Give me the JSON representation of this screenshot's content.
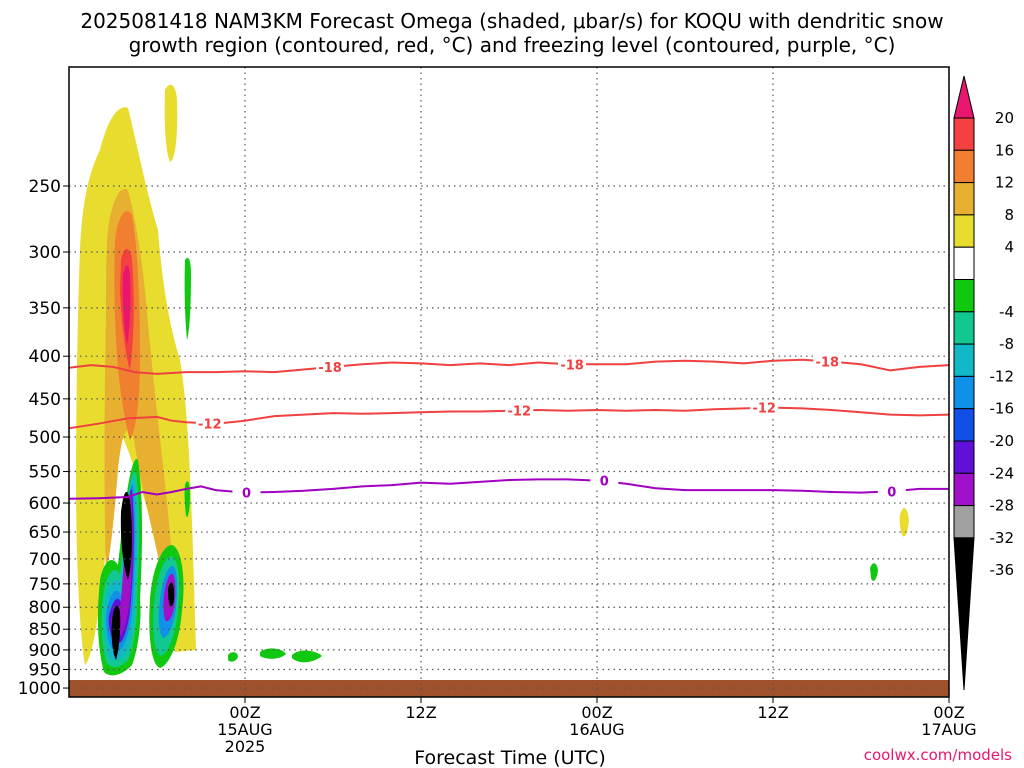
{
  "title_line1": "2025081418 NAM3KM Forecast Omega (shaded, μbar/s) for KOQU with dendritic snow",
  "title_line2": "growth region (contoured, red, °C) and freezing level (contoured, purple, °C)",
  "xlabel": "Forecast Time (UTC)",
  "watermark": "coolwx.com/models",
  "chart_data": {
    "type": "heatmap",
    "title": "2025081418 NAM3KM Forecast Omega (shaded, μbar/s) for KOQU with dendritic snow growth region (contoured, red, °C) and freezing level (contoured, purple, °C)",
    "xlabel": "Forecast Time (UTC)",
    "ylabel": "",
    "x_range_hours": [
      -6,
      54
    ],
    "y_range_hPa": [
      1025,
      180
    ],
    "y_scale": "log-pressure",
    "grid": true,
    "y_ticks": [
      250,
      300,
      350,
      400,
      450,
      500,
      550,
      600,
      650,
      700,
      750,
      800,
      850,
      900,
      950,
      1000
    ],
    "x_ticks": [
      {
        "hour": 6,
        "line1": "00Z",
        "line2": "15AUG",
        "line3": "2025"
      },
      {
        "hour": 18,
        "line1": "12Z",
        "line2": "",
        "line3": ""
      },
      {
        "hour": 30,
        "line1": "00Z",
        "line2": "16AUG",
        "line3": ""
      },
      {
        "hour": 42,
        "line1": "12Z",
        "line2": "",
        "line3": ""
      },
      {
        "hour": 54,
        "line1": "00Z",
        "line2": "17AUG",
        "line3": ""
      }
    ],
    "colorbar": {
      "labels": [
        "20",
        "16",
        "12",
        "8",
        "4",
        "-4",
        "-8",
        "-12",
        "-16",
        "-20",
        "-24",
        "-28",
        "-32",
        "-36"
      ],
      "colors": [
        "#e8166e",
        "#f44040",
        "#f08030",
        "#e8b030",
        "#e8dc2e",
        "#ffffff",
        "#10c810",
        "#10c890",
        "#10b8c8",
        "#1090e8",
        "#1050e8",
        "#6010d8",
        "#a010c8",
        "#a0a0a0",
        "#000000"
      ]
    },
    "contours": [
      {
        "name": "-18",
        "color": "#f04040",
        "points": [
          [
            -6,
            413
          ],
          [
            -4.5,
            410
          ],
          [
            -3,
            412
          ],
          [
            -1.5,
            418
          ],
          [
            0,
            420
          ],
          [
            2,
            418
          ],
          [
            4,
            418
          ],
          [
            6,
            417
          ],
          [
            8,
            418
          ],
          [
            10,
            415
          ],
          [
            12,
            412
          ],
          [
            14,
            409
          ],
          [
            16,
            407
          ],
          [
            18,
            408
          ],
          [
            20,
            410
          ],
          [
            22,
            408
          ],
          [
            24,
            410
          ],
          [
            26,
            407
          ],
          [
            28,
            409
          ],
          [
            30,
            409
          ],
          [
            32,
            409
          ],
          [
            34,
            406
          ],
          [
            36,
            405
          ],
          [
            38,
            406
          ],
          [
            40,
            408
          ],
          [
            42,
            405
          ],
          [
            44,
            404
          ],
          [
            46,
            406
          ],
          [
            48,
            409
          ],
          [
            50,
            416
          ],
          [
            52,
            412
          ],
          [
            54,
            410
          ],
          [
            56,
            412
          ],
          [
            58,
            410
          ],
          [
            60,
            409
          ]
        ],
        "labels": [
          {
            "x": 11.8,
            "text": "-18"
          },
          {
            "x": 28.3,
            "text": "-18"
          },
          {
            "x": 45.7,
            "text": "-18"
          }
        ]
      },
      {
        "name": "-12",
        "color": "#f04040",
        "points": [
          [
            -6,
            488
          ],
          [
            -4,
            482
          ],
          [
            -2,
            475
          ],
          [
            0,
            473
          ],
          [
            1,
            478
          ],
          [
            2,
            480
          ],
          [
            4,
            482
          ],
          [
            6,
            478
          ],
          [
            8,
            472
          ],
          [
            10,
            470
          ],
          [
            12,
            468
          ],
          [
            14,
            469
          ],
          [
            16,
            468
          ],
          [
            18,
            467
          ],
          [
            20,
            466
          ],
          [
            22,
            466
          ],
          [
            24,
            465
          ],
          [
            26,
            464
          ],
          [
            28,
            465
          ],
          [
            30,
            464
          ],
          [
            32,
            465
          ],
          [
            34,
            464
          ],
          [
            36,
            465
          ],
          [
            38,
            463
          ],
          [
            40,
            462
          ],
          [
            42,
            461
          ],
          [
            44,
            462
          ],
          [
            46,
            464
          ],
          [
            48,
            467
          ],
          [
            50,
            470
          ],
          [
            52,
            471
          ],
          [
            54,
            470
          ],
          [
            56,
            472
          ],
          [
            58,
            476
          ],
          [
            60,
            480
          ]
        ],
        "labels": [
          {
            "x": 3.6,
            "text": "-12"
          },
          {
            "x": 24.7,
            "text": "-12"
          },
          {
            "x": 41.4,
            "text": "-12"
          }
        ]
      },
      {
        "name": "0",
        "color": "#a000c0",
        "points": [
          [
            -6,
            593
          ],
          [
            -4,
            592
          ],
          [
            -2,
            590
          ],
          [
            -1,
            582
          ],
          [
            0,
            586
          ],
          [
            1,
            582
          ],
          [
            2,
            577
          ],
          [
            3,
            573
          ],
          [
            4,
            579
          ],
          [
            6,
            583
          ],
          [
            8,
            582
          ],
          [
            10,
            580
          ],
          [
            12,
            577
          ],
          [
            14,
            573
          ],
          [
            16,
            571
          ],
          [
            18,
            567
          ],
          [
            20,
            569
          ],
          [
            22,
            566
          ],
          [
            24,
            563
          ],
          [
            26,
            562
          ],
          [
            28,
            562
          ],
          [
            30,
            564
          ],
          [
            32,
            569
          ],
          [
            34,
            576
          ],
          [
            36,
            579
          ],
          [
            38,
            579
          ],
          [
            40,
            579
          ],
          [
            42,
            579
          ],
          [
            44,
            580
          ],
          [
            46,
            582
          ],
          [
            48,
            583
          ],
          [
            50,
            581
          ],
          [
            52,
            577
          ],
          [
            54,
            577
          ],
          [
            56,
            575
          ],
          [
            58,
            578
          ],
          [
            60,
            580
          ]
        ],
        "labels": [
          {
            "x": 6.1,
            "text": "0"
          },
          {
            "x": 30.5,
            "text": "0"
          },
          {
            "x": 50.1,
            "text": "0"
          }
        ]
      }
    ]
  }
}
